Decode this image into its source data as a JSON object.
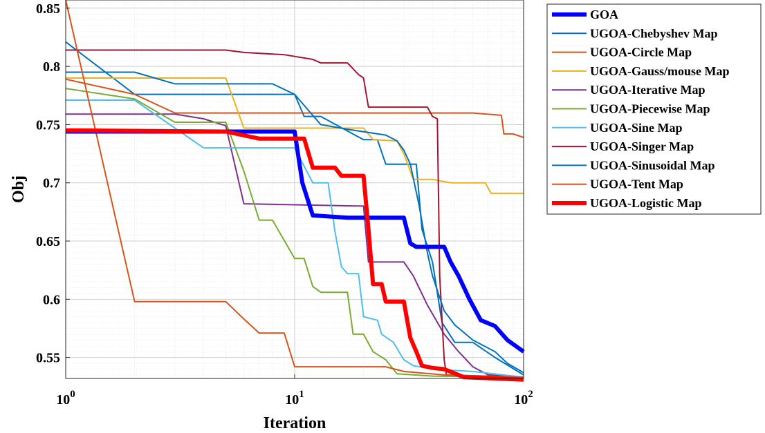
{
  "chart_data": {
    "type": "line",
    "x_scale": "log",
    "xlabel": "Iteration",
    "ylabel": "Obj",
    "xlim": [
      1,
      100
    ],
    "ylim": [
      0.532,
      0.857
    ],
    "grid": true,
    "legend_position": "outside-right",
    "x_ticks": [
      {
        "value": 1,
        "base": "10",
        "exp": "0"
      },
      {
        "value": 10,
        "base": "10",
        "exp": "1"
      },
      {
        "value": 100,
        "base": "10",
        "exp": "2"
      }
    ],
    "y_ticks": [
      "0.55",
      "0.6",
      "0.65",
      "0.7",
      "0.75",
      "0.8",
      "0.85"
    ],
    "series": [
      {
        "name": "GOA",
        "color": "#0000ff",
        "width": 6,
        "points": [
          [
            1,
            0.744
          ],
          [
            10,
            0.744
          ],
          [
            10.8,
            0.7
          ],
          [
            12,
            0.672
          ],
          [
            17,
            0.67
          ],
          [
            30,
            0.67
          ],
          [
            32,
            0.648
          ],
          [
            34,
            0.645
          ],
          [
            45,
            0.645
          ],
          [
            48,
            0.632
          ],
          [
            52,
            0.62
          ],
          [
            58,
            0.6
          ],
          [
            65,
            0.582
          ],
          [
            75,
            0.577
          ],
          [
            85,
            0.565
          ],
          [
            100,
            0.555
          ]
        ]
      },
      {
        "name": "UGOA-Chebyshev Map",
        "color": "#0072bd",
        "width": 2,
        "points": [
          [
            1,
            0.821
          ],
          [
            2,
            0.776
          ],
          [
            10,
            0.776
          ],
          [
            11,
            0.757
          ],
          [
            13,
            0.757
          ],
          [
            20,
            0.737
          ],
          [
            23,
            0.737
          ],
          [
            25,
            0.716
          ],
          [
            34,
            0.716
          ],
          [
            36,
            0.66
          ],
          [
            40,
            0.632
          ],
          [
            44,
            0.58
          ],
          [
            50,
            0.563
          ],
          [
            60,
            0.563
          ],
          [
            75,
            0.55
          ],
          [
            100,
            0.535
          ]
        ]
      },
      {
        "name": "UGOA-Circle Map",
        "color": "#d95319",
        "width": 2,
        "points": [
          [
            1,
            0.789
          ],
          [
            2,
            0.776
          ],
          [
            3,
            0.76
          ],
          [
            60,
            0.76
          ],
          [
            80,
            0.758
          ],
          [
            82,
            0.742
          ],
          [
            90,
            0.742
          ],
          [
            100,
            0.739
          ]
        ]
      },
      {
        "name": "UGOA-Gauss/mouse Map",
        "color": "#edb120",
        "width": 2,
        "points": [
          [
            1,
            0.79
          ],
          [
            5,
            0.79
          ],
          [
            6,
            0.747
          ],
          [
            20,
            0.747
          ],
          [
            22,
            0.737
          ],
          [
            28,
            0.736
          ],
          [
            30,
            0.725
          ],
          [
            33,
            0.703
          ],
          [
            40,
            0.703
          ],
          [
            48,
            0.7
          ],
          [
            68,
            0.7
          ],
          [
            72,
            0.691
          ],
          [
            100,
            0.691
          ]
        ]
      },
      {
        "name": "UGOA-Iterative Map",
        "color": "#7e2f8e",
        "width": 2,
        "points": [
          [
            1,
            0.759
          ],
          [
            3,
            0.759
          ],
          [
            4,
            0.755
          ],
          [
            5,
            0.749
          ],
          [
            6,
            0.682
          ],
          [
            20,
            0.68
          ],
          [
            21,
            0.632
          ],
          [
            30,
            0.632
          ],
          [
            33,
            0.62
          ],
          [
            38,
            0.595
          ],
          [
            45,
            0.57
          ],
          [
            52,
            0.555
          ],
          [
            60,
            0.542
          ],
          [
            70,
            0.535
          ],
          [
            100,
            0.533
          ]
        ]
      },
      {
        "name": "UGOA-Piecewise Map",
        "color": "#77ac30",
        "width": 2,
        "points": [
          [
            1,
            0.781
          ],
          [
            2,
            0.772
          ],
          [
            3,
            0.752
          ],
          [
            5,
            0.752
          ],
          [
            6,
            0.71
          ],
          [
            7,
            0.668
          ],
          [
            8,
            0.668
          ],
          [
            10,
            0.635
          ],
          [
            11,
            0.635
          ],
          [
            12,
            0.611
          ],
          [
            13,
            0.606
          ],
          [
            17,
            0.606
          ],
          [
            18,
            0.57
          ],
          [
            20,
            0.57
          ],
          [
            22,
            0.555
          ],
          [
            25,
            0.548
          ],
          [
            28,
            0.536
          ],
          [
            40,
            0.534
          ],
          [
            100,
            0.533
          ]
        ]
      },
      {
        "name": "UGOA-Sine Map",
        "color": "#4dbeee",
        "width": 2,
        "points": [
          [
            1,
            0.771
          ],
          [
            2,
            0.771
          ],
          [
            3,
            0.747
          ],
          [
            4,
            0.73
          ],
          [
            10,
            0.73
          ],
          [
            12,
            0.7
          ],
          [
            14,
            0.7
          ],
          [
            15,
            0.658
          ],
          [
            16,
            0.628
          ],
          [
            17,
            0.622
          ],
          [
            19,
            0.622
          ],
          [
            20,
            0.585
          ],
          [
            23,
            0.582
          ],
          [
            24,
            0.57
          ],
          [
            27,
            0.563
          ],
          [
            30,
            0.548
          ],
          [
            33,
            0.543
          ],
          [
            40,
            0.54
          ],
          [
            60,
            0.538
          ],
          [
            100,
            0.533
          ]
        ]
      },
      {
        "name": "UGOA-Singer Map",
        "color": "#a2142f",
        "width": 2,
        "points": [
          [
            1,
            0.814
          ],
          [
            5,
            0.814
          ],
          [
            6,
            0.812
          ],
          [
            9,
            0.81
          ],
          [
            12,
            0.806
          ],
          [
            13,
            0.803
          ],
          [
            17,
            0.803
          ],
          [
            19,
            0.793
          ],
          [
            20,
            0.79
          ],
          [
            21,
            0.765
          ],
          [
            24,
            0.765
          ],
          [
            25,
            0.765
          ],
          [
            38,
            0.765
          ],
          [
            40,
            0.757
          ],
          [
            42,
            0.755
          ],
          [
            43,
            0.62
          ],
          [
            45,
            0.548
          ],
          [
            46,
            0.535
          ],
          [
            100,
            0.533
          ]
        ]
      },
      {
        "name": "UGOA-Sinusoidal Map",
        "color": "#0072bd",
        "width": 2,
        "points": [
          [
            1,
            0.795
          ],
          [
            2,
            0.795
          ],
          [
            3,
            0.785
          ],
          [
            8,
            0.785
          ],
          [
            10,
            0.776
          ],
          [
            13,
            0.75
          ],
          [
            17,
            0.746
          ],
          [
            25,
            0.741
          ],
          [
            28,
            0.736
          ],
          [
            30,
            0.728
          ],
          [
            32,
            0.716
          ],
          [
            35,
            0.68
          ],
          [
            38,
            0.64
          ],
          [
            40,
            0.62
          ],
          [
            45,
            0.59
          ],
          [
            50,
            0.578
          ],
          [
            60,
            0.565
          ],
          [
            75,
            0.555
          ],
          [
            85,
            0.545
          ],
          [
            100,
            0.537
          ]
        ]
      },
      {
        "name": "UGOA-Tent Map",
        "color": "#d95319",
        "width": 2,
        "points": [
          [
            1,
            0.857
          ],
          [
            2,
            0.598
          ],
          [
            5,
            0.598
          ],
          [
            6,
            0.583
          ],
          [
            7,
            0.571
          ],
          [
            9,
            0.571
          ],
          [
            10,
            0.542
          ],
          [
            25,
            0.542
          ],
          [
            30,
            0.538
          ],
          [
            45,
            0.535
          ],
          [
            100,
            0.533
          ]
        ]
      },
      {
        "name": "UGOA-Logistic Map",
        "color": "#ff0000",
        "width": 6,
        "points": [
          [
            1,
            0.745
          ],
          [
            5,
            0.744
          ],
          [
            7,
            0.738
          ],
          [
            11,
            0.738
          ],
          [
            12,
            0.713
          ],
          [
            15,
            0.713
          ],
          [
            16,
            0.706
          ],
          [
            20,
            0.706
          ],
          [
            21,
            0.66
          ],
          [
            22,
            0.613
          ],
          [
            24,
            0.613
          ],
          [
            25,
            0.598
          ],
          [
            30,
            0.598
          ],
          [
            32,
            0.567
          ],
          [
            34,
            0.555
          ],
          [
            36,
            0.543
          ],
          [
            40,
            0.541
          ],
          [
            45,
            0.54
          ],
          [
            55,
            0.533
          ],
          [
            100,
            0.531
          ]
        ]
      }
    ]
  }
}
